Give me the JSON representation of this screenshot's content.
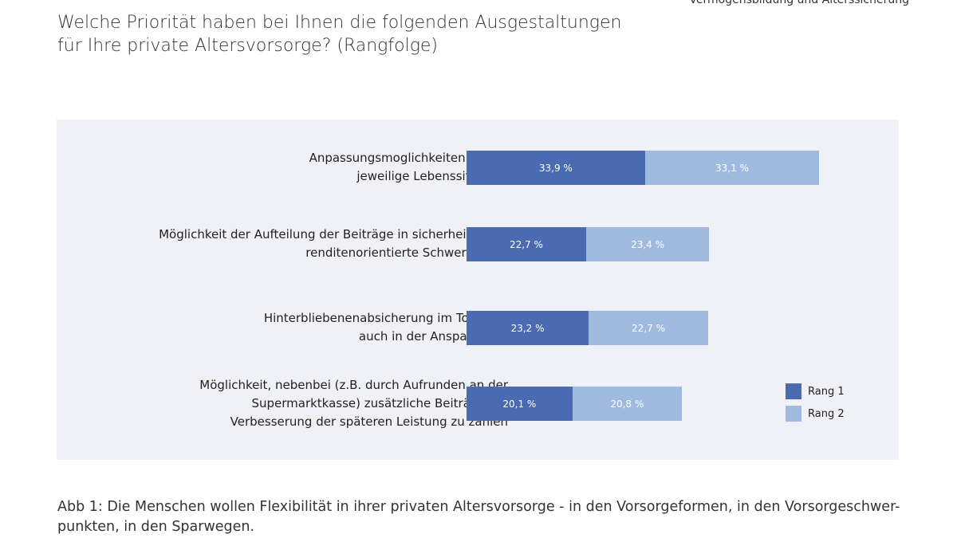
{
  "header": "Vermögensbildung und Alterssicherung",
  "title_line1": "Welche Priorität haben bei Ihnen die folgenden Ausgestaltungen",
  "title_line2": "für Ihre private Altersvorsorge? (Rangfolge)",
  "caption": "Abb 1: Die Menschen wollen Flexibilität in ihrer privaten Altersvorsorge - in den Vorsorgeformen, in den Vorsorgeschwer-punkten, in den Sparwegen.",
  "chart_data": {
    "type": "bar",
    "orientation": "horizontal",
    "stacked": true,
    "categories": [
      [
        "Anpassungsmoglichkeiten für die",
        "jeweilige Lebenssituation"
      ],
      [
        "Möglichkeit der Aufteilung der Beiträge in sicherheits- und",
        "renditenorientierte Schwerpunkte"
      ],
      [
        "Hinterbliebenenabsicherung im Todesfall",
        "auch in der Ansparphase"
      ],
      [
        "Möglichkeit, nebenbei (z.B. durch Aufrunden an der",
        "Supermarktkasse) zusätzliche Beiträge zur",
        "Verbesserung der späteren Leistung zu zahlen"
      ]
    ],
    "series": [
      {
        "name": "Rang 1",
        "color": "#4a6ab2",
        "values": [
          33.9,
          22.7,
          23.2,
          20.1
        ],
        "labels": [
          "33,9 %",
          "22,7 %",
          "23,2 %",
          "20,1 %"
        ]
      },
      {
        "name": "Rang 2",
        "color": "#a0b9df",
        "values": [
          33.1,
          23.4,
          22.7,
          20.8
        ],
        "labels": [
          "33,1 %",
          "23,4 %",
          "22,7 %",
          "20,8 %"
        ]
      }
    ],
    "legend": "right",
    "grid": false
  }
}
